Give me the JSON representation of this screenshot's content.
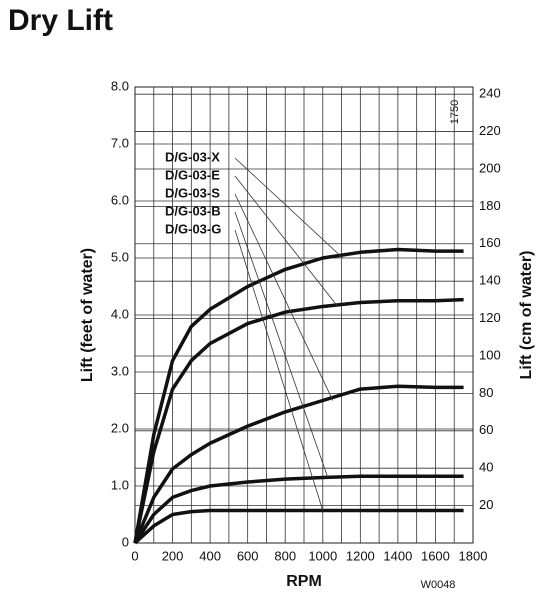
{
  "chart_data": {
    "type": "line",
    "title": "Dry Lift",
    "x_label": "RPM",
    "y_label": "Lift (feet of water)",
    "y2_label": "Lift (cm of water)",
    "annotations": [
      "1750",
      "W0048"
    ],
    "x": [
      0,
      100,
      200,
      300,
      400,
      600,
      800,
      1000,
      1200,
      1400,
      1600,
      1750
    ],
    "series": [
      {
        "name": "D/G-03-X",
        "color": "#111111",
        "values": [
          0,
          1.9,
          3.2,
          3.8,
          4.1,
          4.5,
          4.8,
          5.0,
          5.1,
          5.15,
          5.12,
          5.12
        ]
      },
      {
        "name": "D/G-03-E",
        "color": "#111111",
        "values": [
          0,
          1.6,
          2.7,
          3.2,
          3.5,
          3.85,
          4.05,
          4.15,
          4.22,
          4.25,
          4.25,
          4.27
        ]
      },
      {
        "name": "D/G-03-S",
        "color": "#111111",
        "values": [
          0,
          0.8,
          1.3,
          1.55,
          1.75,
          2.05,
          2.3,
          2.5,
          2.7,
          2.75,
          2.73,
          2.73
        ]
      },
      {
        "name": "D/G-03-B",
        "color": "#111111",
        "values": [
          0,
          0.5,
          0.8,
          0.92,
          1.0,
          1.07,
          1.12,
          1.15,
          1.17,
          1.17,
          1.17,
          1.17
        ]
      },
      {
        "name": "D/G-03-G",
        "color": "#111111",
        "values": [
          0,
          0.3,
          0.5,
          0.55,
          0.57,
          0.57,
          0.57,
          0.57,
          0.57,
          0.57,
          0.57,
          0.57
        ]
      }
    ],
    "xlim": [
      0,
      1800
    ],
    "xticks": [
      0,
      200,
      400,
      600,
      800,
      1000,
      1200,
      1400,
      1600,
      1800
    ],
    "ylim": [
      0,
      8
    ],
    "yticks": [
      0,
      {
        "value": 1,
        "label": "1.0"
      },
      {
        "value": 2,
        "label": "2.0"
      },
      {
        "value": 3,
        "label": "3.0"
      },
      {
        "value": 4,
        "label": "4.0"
      },
      {
        "value": 5,
        "label": "5.0"
      },
      {
        "value": 6,
        "label": "6.0"
      },
      {
        "value": 7,
        "label": "7.0"
      },
      {
        "value": 8,
        "label": "8.0"
      }
    ],
    "y2lim": [
      0,
      243.84
    ],
    "y2ticks": [
      20,
      40,
      60,
      80,
      100,
      120,
      140,
      160,
      180,
      200,
      220,
      240
    ],
    "grid": true
  }
}
